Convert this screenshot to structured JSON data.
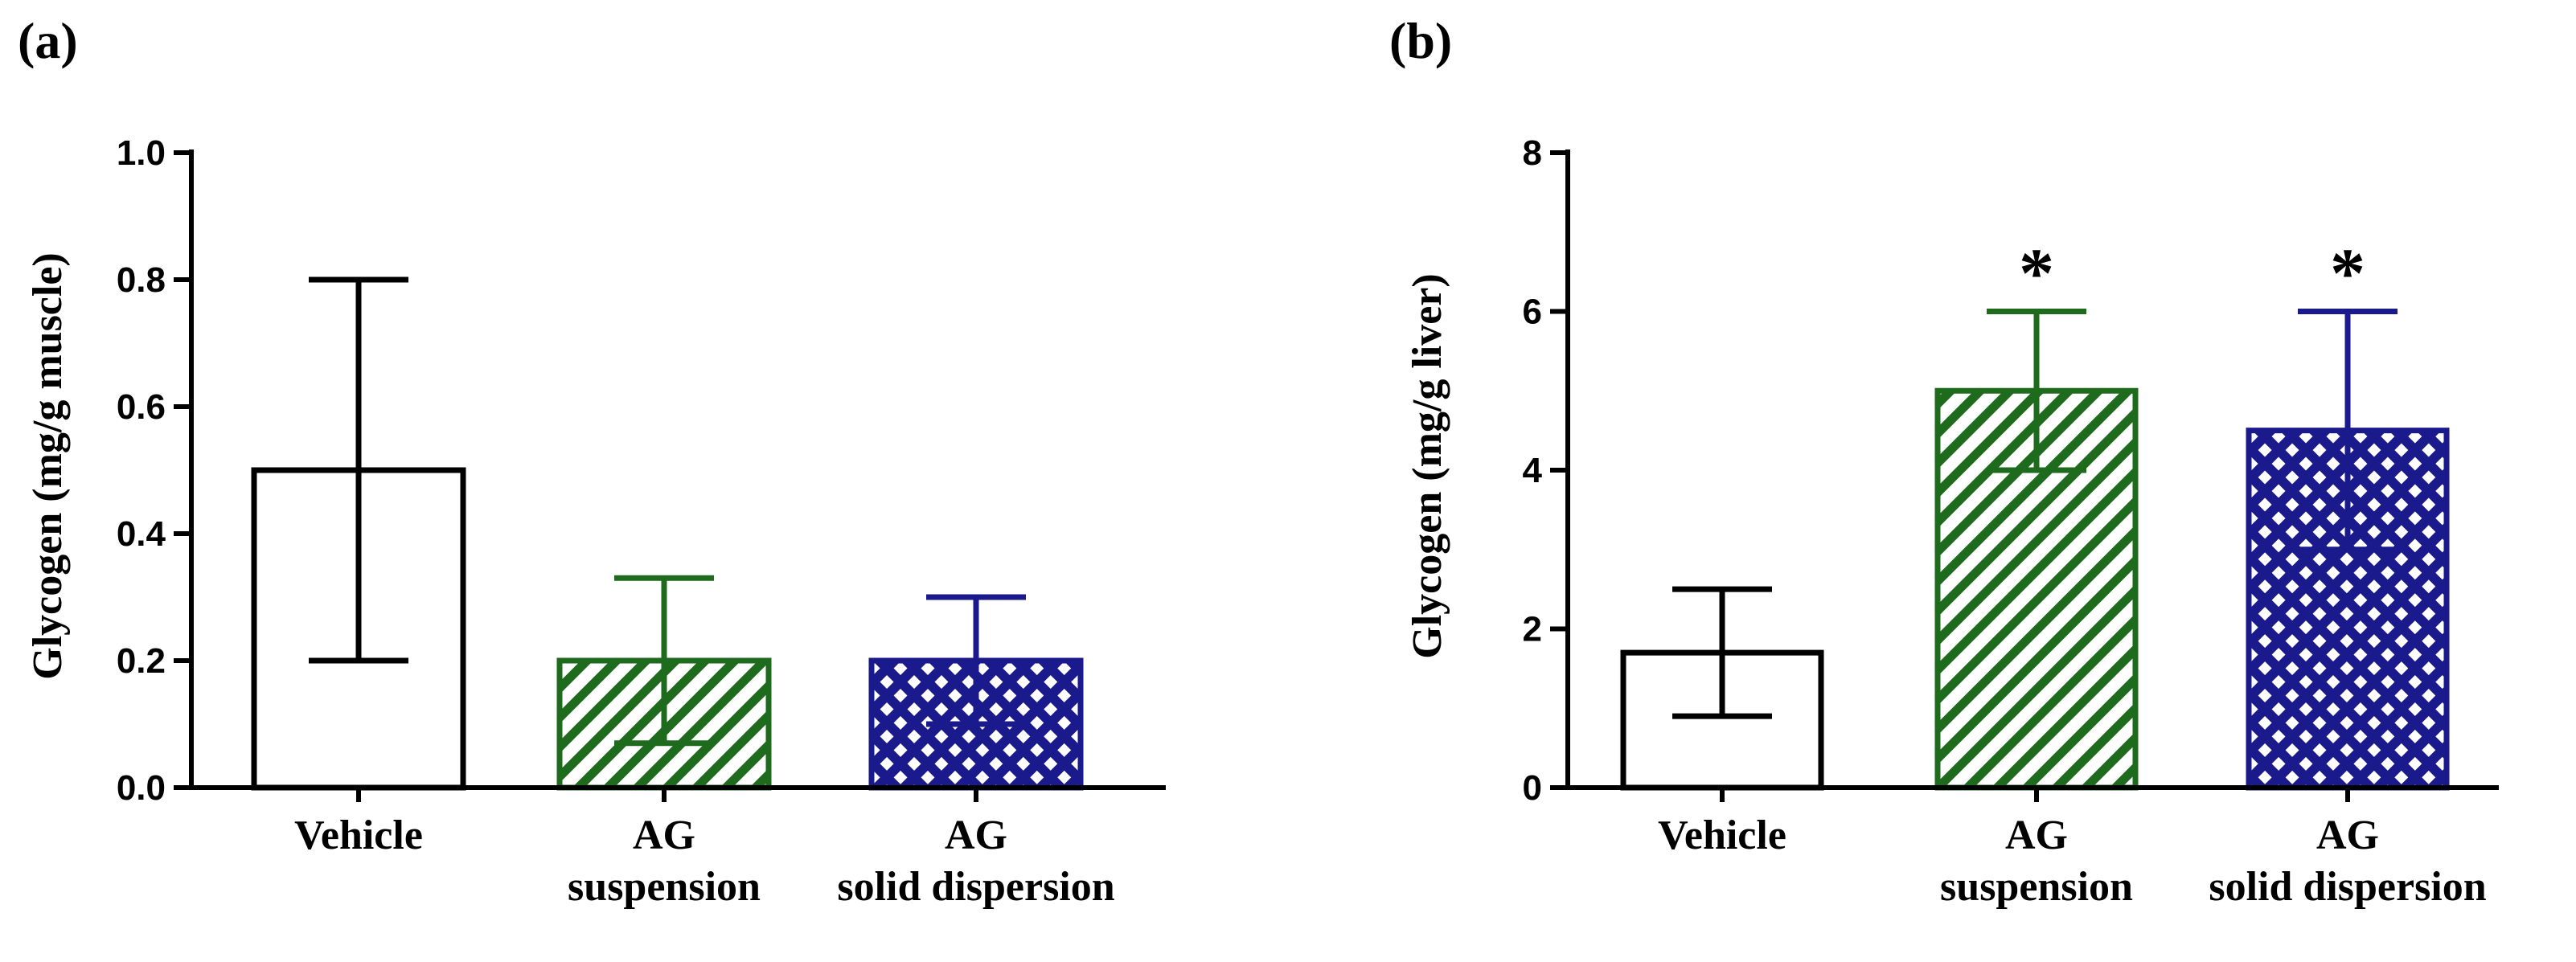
{
  "chart_data": [
    {
      "type": "bar",
      "panel_label": "(a)",
      "ylabel": "Glycogen (mg/g muscle)",
      "categories": [
        [
          "Vehicle"
        ],
        [
          "AG",
          "suspension"
        ],
        [
          "AG",
          "solid dispersion"
        ]
      ],
      "values": [
        0.5,
        0.2,
        0.2
      ],
      "error_low": [
        0.2,
        0.07,
        0.1
      ],
      "error_high": [
        0.8,
        0.33,
        0.3
      ],
      "annotations": [
        "",
        "",
        ""
      ],
      "ylim": [
        0,
        1.0
      ],
      "yticks": [
        0.0,
        0.2,
        0.4,
        0.6,
        0.8,
        1.0
      ],
      "ytick_labels": [
        "0.0",
        "0.2",
        "0.4",
        "0.6",
        "0.8",
        "1.0"
      ],
      "bar_fills": [
        "none",
        "diagonal-stripes",
        "crosshatch"
      ],
      "bar_colors": [
        "#000000",
        "#1e6b1e",
        "#1a1a8c"
      ],
      "grid": false
    },
    {
      "type": "bar",
      "panel_label": "(b)",
      "ylabel": "Glycogen (mg/g liver)",
      "categories": [
        [
          "Vehicle"
        ],
        [
          "AG",
          "suspension"
        ],
        [
          "AG",
          "solid dispersion"
        ]
      ],
      "values": [
        1.7,
        5.0,
        4.5
      ],
      "error_low": [
        0.9,
        4.0,
        3.0
      ],
      "error_high": [
        2.5,
        6.0,
        6.0
      ],
      "annotations": [
        "",
        "*",
        "*"
      ],
      "ylim": [
        0,
        8
      ],
      "yticks": [
        0,
        2,
        4,
        6,
        8
      ],
      "ytick_labels": [
        "0",
        "2",
        "4",
        "6",
        "8"
      ],
      "bar_fills": [
        "none",
        "diagonal-stripes",
        "crosshatch"
      ],
      "bar_colors": [
        "#000000",
        "#1e6b1e",
        "#1a1a8c"
      ],
      "grid": false
    }
  ]
}
